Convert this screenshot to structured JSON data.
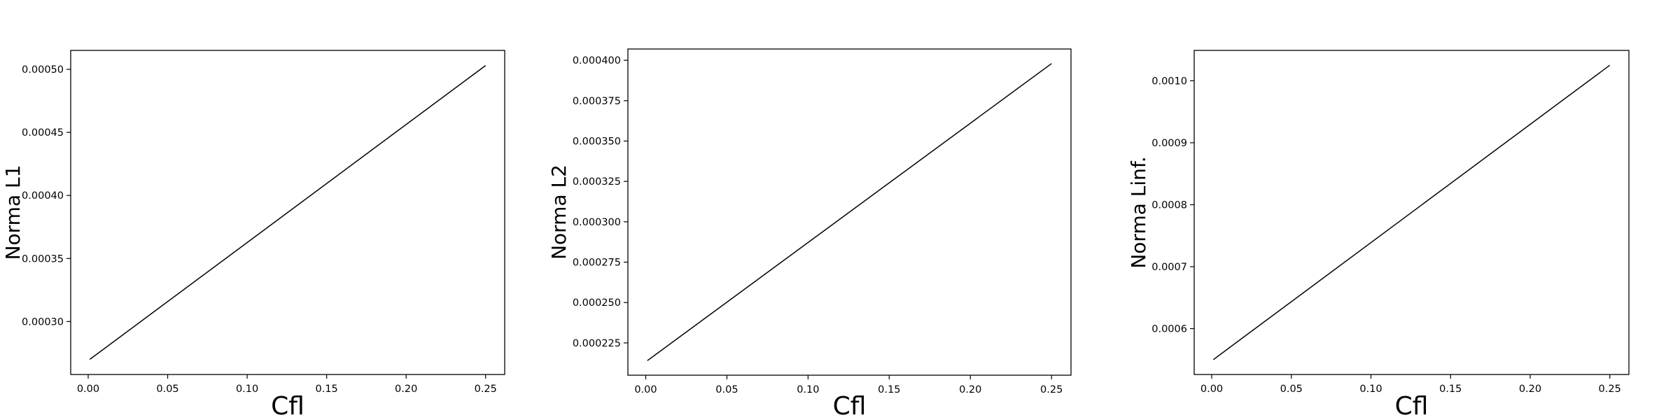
{
  "chart_data": [
    {
      "type": "line",
      "xlabel": "Cfl",
      "ylabel": "Norma L1",
      "x": [
        0.001,
        0.25
      ],
      "series": [
        {
          "values": [
            0.00027,
            0.000503
          ]
        }
      ],
      "xlim": [
        -0.011,
        0.262
      ],
      "ylim": [
        0.000258,
        0.000515
      ],
      "xticks": [
        0.0,
        0.05,
        0.1,
        0.15,
        0.2,
        0.25
      ],
      "xtick_labels": [
        "0.00",
        "0.05",
        "0.10",
        "0.15",
        "0.20",
        "0.25"
      ],
      "yticks": [
        0.0003,
        0.00035,
        0.0004,
        0.00045,
        0.0005
      ],
      "ytick_labels": [
        "0.00030",
        "0.00035",
        "0.00040",
        "0.00045",
        "0.00050"
      ],
      "line_color": "#000000",
      "grid": false
    },
    {
      "type": "line",
      "xlabel": "Cfl",
      "ylabel": "Norma L2",
      "x": [
        0.001,
        0.25
      ],
      "series": [
        {
          "values": [
            0.000214,
            0.000398
          ]
        }
      ],
      "xlim": [
        -0.011,
        0.262
      ],
      "ylim": [
        0.000205,
        0.000407
      ],
      "xticks": [
        0.0,
        0.05,
        0.1,
        0.15,
        0.2,
        0.25
      ],
      "xtick_labels": [
        "0.00",
        "0.05",
        "0.10",
        "0.15",
        "0.20",
        "0.25"
      ],
      "yticks": [
        0.000225,
        0.00025,
        0.000275,
        0.0003,
        0.000325,
        0.00035,
        0.000375,
        0.0004
      ],
      "ytick_labels": [
        "0.000225",
        "0.000250",
        "0.000275",
        "0.000300",
        "0.000325",
        "0.000350",
        "0.000375",
        "0.000400"
      ],
      "line_color": "#000000",
      "grid": false
    },
    {
      "type": "line",
      "xlabel": "Cfl",
      "ylabel": "Norma Linf.",
      "x": [
        0.001,
        0.25
      ],
      "series": [
        {
          "values": [
            0.00055,
            0.001025
          ]
        }
      ],
      "xlim": [
        -0.011,
        0.262
      ],
      "ylim": [
        0.000526,
        0.001049
      ],
      "xticks": [
        0.0,
        0.05,
        0.1,
        0.15,
        0.2,
        0.25
      ],
      "xtick_labels": [
        "0.00",
        "0.05",
        "0.10",
        "0.15",
        "0.20",
        "0.25"
      ],
      "yticks": [
        0.0006,
        0.0007,
        0.0008,
        0.0009,
        0.001
      ],
      "ytick_labels": [
        "0.0006",
        "0.0007",
        "0.0008",
        "0.0009",
        "0.0010"
      ],
      "line_color": "#000000",
      "grid": false
    }
  ]
}
